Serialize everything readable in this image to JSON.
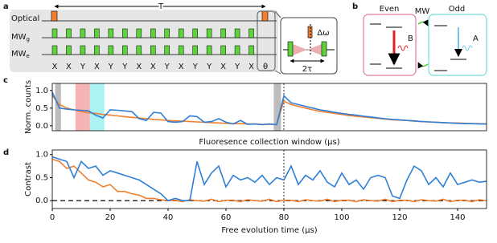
{
  "panel_labels": [
    "a",
    "b",
    "c",
    "d"
  ],
  "diagram_a": {
    "rows": [
      {
        "text": "Optical"
      },
      {
        "text": "MW",
        "sub": "g"
      },
      {
        "text": "MW",
        "sub": "e"
      }
    ],
    "period": "T",
    "pulse_labels": [
      "X",
      "X",
      "Y",
      "X",
      "Y",
      "Y",
      "X",
      "X",
      "Y",
      "X",
      "Y",
      "Y",
      "X",
      "Y",
      "X",
      "θ"
    ],
    "inset": {
      "detuning": "Δω",
      "spacing": "2τ"
    }
  },
  "diagram_b": {
    "even": "Even",
    "odd": "Odd",
    "mw": "MW",
    "even_emission": "B",
    "odd_emission": "A"
  },
  "chart_data": [
    {
      "type": "line",
      "ylabel": "Norm. counts",
      "xlabel": "Fluoresence collection window (μs)",
      "xlim": [
        0,
        150
      ],
      "ylim": [
        -0.14,
        1.2
      ],
      "yticks": [
        {
          "value": 0,
          "label": "0.0"
        },
        0.5,
        {
          "value": 1,
          "label": "1.0"
        }
      ],
      "vline": 80,
      "highlights": [
        {
          "range": [
            1,
            3
          ],
          "color": "#b0b0b0"
        },
        {
          "range": [
            8,
            13
          ],
          "color": "#f4a6a6"
        },
        {
          "range": [
            13,
            18
          ],
          "color": "#9ef0f0"
        },
        {
          "range": [
            76.5,
            79
          ],
          "color": "#b0b0b0"
        }
      ],
      "x": [
        0,
        2.5,
        5,
        7.5,
        10,
        12.5,
        15,
        17.5,
        20,
        22.5,
        25,
        27.5,
        30,
        32.5,
        35,
        37.5,
        40,
        42.5,
        45,
        47.5,
        50,
        52.5,
        55,
        57.5,
        60,
        62.5,
        65,
        67.5,
        70,
        72.5,
        75,
        77.5,
        80,
        82.5,
        85,
        87.5,
        90,
        92.5,
        95,
        97.5,
        100,
        102.5,
        105,
        107.5,
        110,
        112.5,
        115,
        117.5,
        120,
        122.5,
        125,
        127.5,
        130,
        132.5,
        135,
        137.5,
        140,
        142.5,
        145,
        147.5,
        150
      ],
      "series": [
        {
          "color": "#f07f2e",
          "values": [
            0.85,
            0.6,
            0.5,
            0.45,
            0.4,
            0.37,
            0.35,
            0.32,
            0.3,
            0.28,
            0.26,
            0.24,
            0.22,
            0.2,
            0.18,
            0.17,
            0.15,
            0.14,
            0.13,
            0.12,
            0.11,
            0.1,
            0.09,
            0.08,
            0.07,
            0.06,
            0.06,
            0.05,
            0.05,
            0.04,
            0.04,
            0.04,
            0.7,
            0.6,
            0.55,
            0.5,
            0.45,
            0.41,
            0.38,
            0.35,
            0.32,
            0.29,
            0.27,
            0.25,
            0.23,
            0.21,
            0.19,
            0.17,
            0.16,
            0.15,
            0.13,
            0.12,
            0.11,
            0.1,
            0.09,
            0.08,
            0.08,
            0.07,
            0.06,
            0.06,
            0.05
          ]
        },
        {
          "color": "#2f7fd8",
          "values": [
            0.95,
            0.5,
            0.47,
            0.45,
            0.44,
            0.42,
            0.3,
            0.22,
            0.45,
            0.44,
            0.42,
            0.4,
            0.2,
            0.15,
            0.38,
            0.36,
            0.12,
            0.1,
            0.12,
            0.28,
            0.26,
            0.1,
            0.12,
            0.2,
            0.1,
            0.05,
            0.15,
            0.04,
            0.05,
            0.03,
            0.05,
            0.03,
            0.85,
            0.65,
            0.6,
            0.55,
            0.5,
            0.45,
            0.42,
            0.38,
            0.35,
            0.32,
            0.3,
            0.27,
            0.25,
            0.22,
            0.2,
            0.18,
            0.17,
            0.15,
            0.14,
            0.12,
            0.11,
            0.1,
            0.09,
            0.08,
            0.07,
            0.06,
            0.06,
            0.05,
            0.05
          ]
        }
      ]
    },
    {
      "type": "line",
      "ylabel": "Contrast",
      "xlabel": "Free evolution time (μs)",
      "xlim": [
        0,
        150
      ],
      "ylim": [
        -0.17,
        1.1
      ],
      "xticks": [
        0,
        20,
        40,
        60,
        80,
        100,
        120,
        140
      ],
      "yticks": [
        {
          "value": 0,
          "label": "0.0"
        },
        0.5,
        {
          "value": 1,
          "label": "1.0"
        }
      ],
      "vline": 80,
      "hline": 0,
      "x": [
        0,
        2.5,
        5,
        7.5,
        10,
        12.5,
        15,
        17.5,
        20,
        22.5,
        25,
        27.5,
        30,
        32.5,
        35,
        37.5,
        40,
        42.5,
        45,
        47.5,
        50,
        52.5,
        55,
        57.5,
        60,
        62.5,
        65,
        67.5,
        70,
        72.5,
        75,
        77.5,
        80,
        82.5,
        85,
        87.5,
        90,
        92.5,
        95,
        97.5,
        100,
        102.5,
        105,
        107.5,
        110,
        112.5,
        115,
        117.5,
        120,
        122.5,
        125,
        127.5,
        130,
        132.5,
        135,
        137.5,
        140,
        142.5,
        145,
        147.5,
        150
      ],
      "series": [
        {
          "color": "#f07f2e",
          "values": [
            0.9,
            0.85,
            0.7,
            0.75,
            0.6,
            0.45,
            0.4,
            0.3,
            0.35,
            0.2,
            0.2,
            0.15,
            0.12,
            0.05,
            0.05,
            0.02,
            0.0,
            0.01,
            -0.02,
            0.02,
            0.0,
            -0.01,
            0.03,
            -0.02,
            0.01,
            0.01,
            -0.02,
            0.02,
            0.0,
            -0.01,
            0.03,
            -0.02,
            0.01,
            0.01,
            -0.02,
            0.02,
            0.0,
            -0.01,
            0.03,
            -0.02,
            0.01,
            0.01,
            -0.02,
            0.02,
            0.0,
            -0.01,
            0.03,
            -0.02,
            0.01,
            0.01,
            -0.02,
            0.02,
            0.0,
            -0.01,
            0.03,
            -0.02,
            0.01,
            0.01,
            -0.02,
            0.02,
            0.0
          ]
        },
        {
          "color": "#2f7fd8",
          "values": [
            0.95,
            0.9,
            0.85,
            0.5,
            0.85,
            0.7,
            0.75,
            0.55,
            0.65,
            0.6,
            0.55,
            0.5,
            0.45,
            0.35,
            0.25,
            0.15,
            0.0,
            0.05,
            0.0,
            0.0,
            0.85,
            0.35,
            0.6,
            0.75,
            0.3,
            0.55,
            0.45,
            0.5,
            0.4,
            0.55,
            0.35,
            0.5,
            0.45,
            0.75,
            0.35,
            0.55,
            0.45,
            0.65,
            0.4,
            0.3,
            0.6,
            0.35,
            0.45,
            0.25,
            0.5,
            0.55,
            0.5,
            0.1,
            0.05,
            0.45,
            0.75,
            0.65,
            0.35,
            0.5,
            0.3,
            0.6,
            0.35,
            0.4,
            0.45,
            0.4,
            0.42
          ]
        }
      ]
    }
  ]
}
